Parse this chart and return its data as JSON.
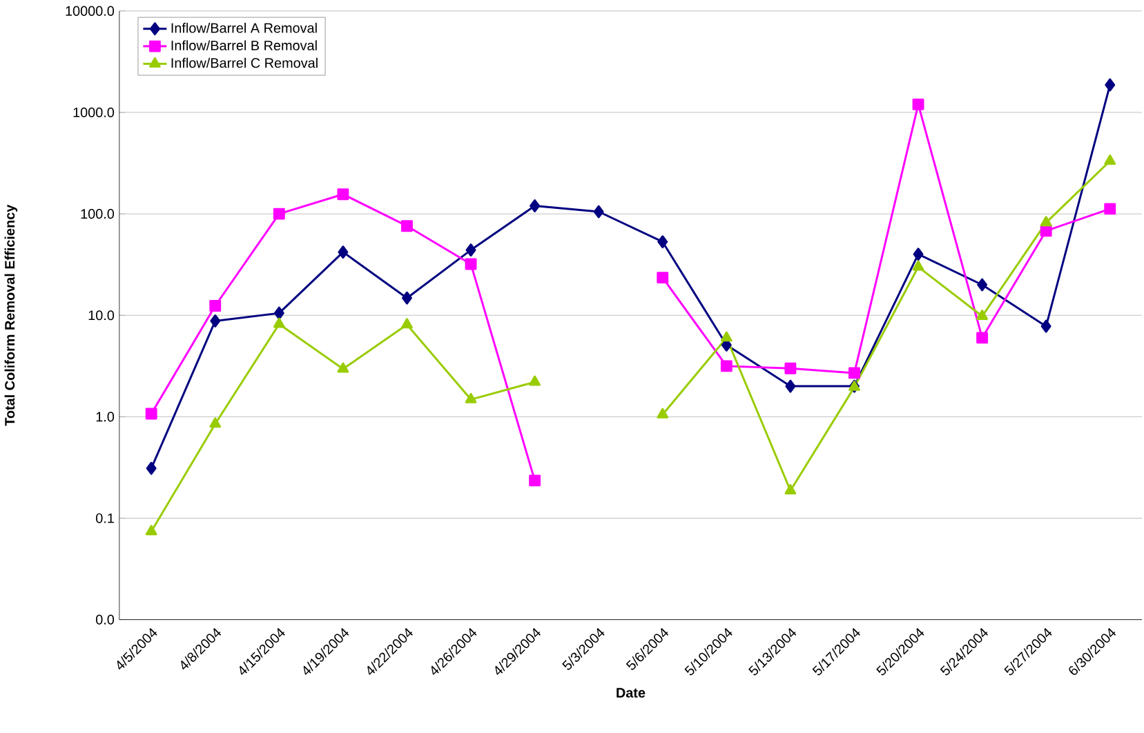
{
  "chart_data": {
    "type": "line",
    "xlabel": "Date",
    "ylabel": "Total Coliform Removal Efficiency",
    "categories": [
      "4/5/2004",
      "4/8/2004",
      "4/15/2004",
      "4/19/2004",
      "4/22/2004",
      "4/26/2004",
      "4/29/2004",
      "5/3/2004",
      "5/6/2004",
      "5/10/2004",
      "5/13/2004",
      "5/17/2004",
      "5/20/2004",
      "5/24/2004",
      "5/27/2004",
      "6/30/2004"
    ],
    "series": [
      {
        "name": "Inflow/Barrel A Removal",
        "color": "#000080",
        "marker": "diamond",
        "values": [
          0.31,
          8.8,
          10.5,
          42,
          14.8,
          44,
          120,
          105,
          53,
          5.1,
          2.0,
          2.0,
          40,
          20,
          7.8,
          1870
        ]
      },
      {
        "name": "Inflow/Barrel B Removal",
        "color": "#ff00ff",
        "marker": "square",
        "values": [
          1.07,
          12.4,
          100,
          156,
          76,
          32,
          0.235,
          null,
          23.5,
          3.16,
          3.0,
          2.7,
          1200,
          6.0,
          68,
          112
        ]
      },
      {
        "name": "Inflow/Barrel C Removal",
        "color": "#99cc00",
        "marker": "triangle",
        "values": [
          0.074,
          0.85,
          8.2,
          2.96,
          8.1,
          1.48,
          2.2,
          null,
          1.05,
          6.0,
          0.187,
          1.96,
          30,
          9.8,
          82,
          332
        ]
      }
    ],
    "log": "y",
    "ylim": [
      0.01,
      10000
    ],
    "yticks": [
      {
        "value": 0.01,
        "label": "0.0"
      },
      {
        "value": 0.1,
        "label": "0.1"
      },
      {
        "value": 1,
        "label": "1.0"
      },
      {
        "value": 10,
        "label": "10.0"
      },
      {
        "value": 100,
        "label": "100.0"
      },
      {
        "value": 1000,
        "label": "1000.0"
      },
      {
        "value": 10000,
        "label": "10000.0"
      }
    ],
    "grid": "y",
    "legend": "top left"
  }
}
